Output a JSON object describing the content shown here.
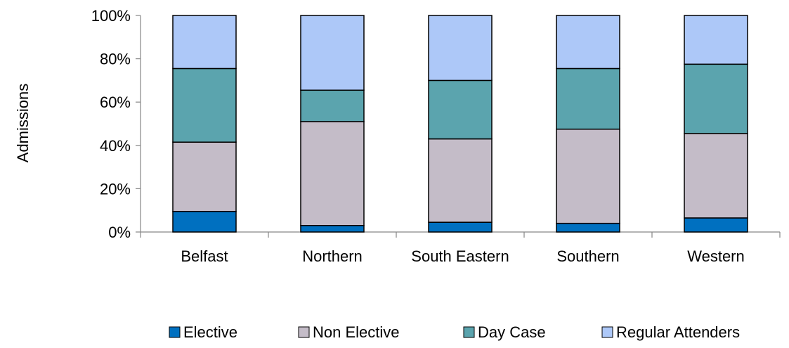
{
  "chart_data": {
    "type": "bar",
    "stacked": true,
    "percent_axis": true,
    "categories": [
      "Belfast",
      "Northern",
      "South Eastern",
      "Southern",
      "Western"
    ],
    "series": [
      {
        "name": "Elective",
        "color": "#0070C0",
        "values": [
          9.5,
          3.0,
          4.5,
          4.0,
          6.5
        ]
      },
      {
        "name": "Non Elective",
        "color": "#C4BCC8",
        "values": [
          32.0,
          48.0,
          38.5,
          43.5,
          39.0
        ]
      },
      {
        "name": "Day Case",
        "color": "#5BA4AE",
        "values": [
          34.0,
          14.5,
          27.0,
          28.0,
          32.0
        ]
      },
      {
        "name": "Regular Attenders",
        "color": "#ADC8F8",
        "values": [
          24.5,
          34.5,
          30.0,
          24.5,
          22.5
        ]
      }
    ],
    "y_ticks": [
      "0%",
      "20%",
      "40%",
      "60%",
      "80%",
      "100%"
    ],
    "ylim": [
      0,
      100
    ],
    "ylabel": "Admissions",
    "xlabel": "",
    "title": "",
    "legend": "bottom",
    "grid": false
  }
}
